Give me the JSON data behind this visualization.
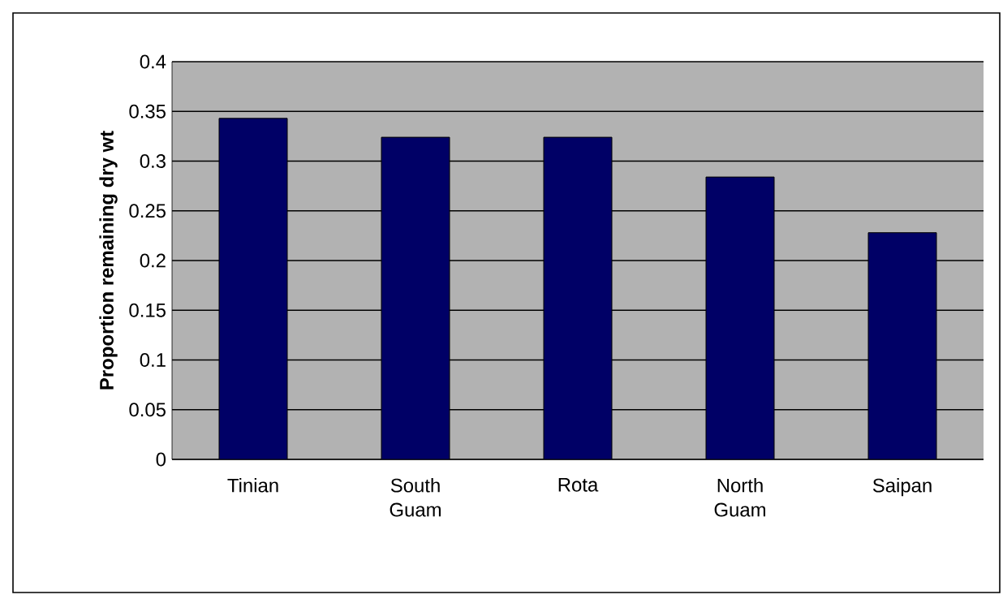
{
  "chart_data": {
    "type": "bar",
    "ylabel": "Proportion remaining dry wt",
    "categories": [
      "Tinian",
      "South Guam",
      "Rota",
      "North Guam",
      "Saipan"
    ],
    "values": [
      0.343,
      0.324,
      0.324,
      0.284,
      0.228
    ],
    "color": "#000066",
    "ylim": [
      0,
      0.4
    ],
    "yticks": [
      0,
      0.05,
      0.1,
      0.15,
      0.2,
      0.25,
      0.3,
      0.35,
      0.4
    ],
    "grid": "y"
  }
}
